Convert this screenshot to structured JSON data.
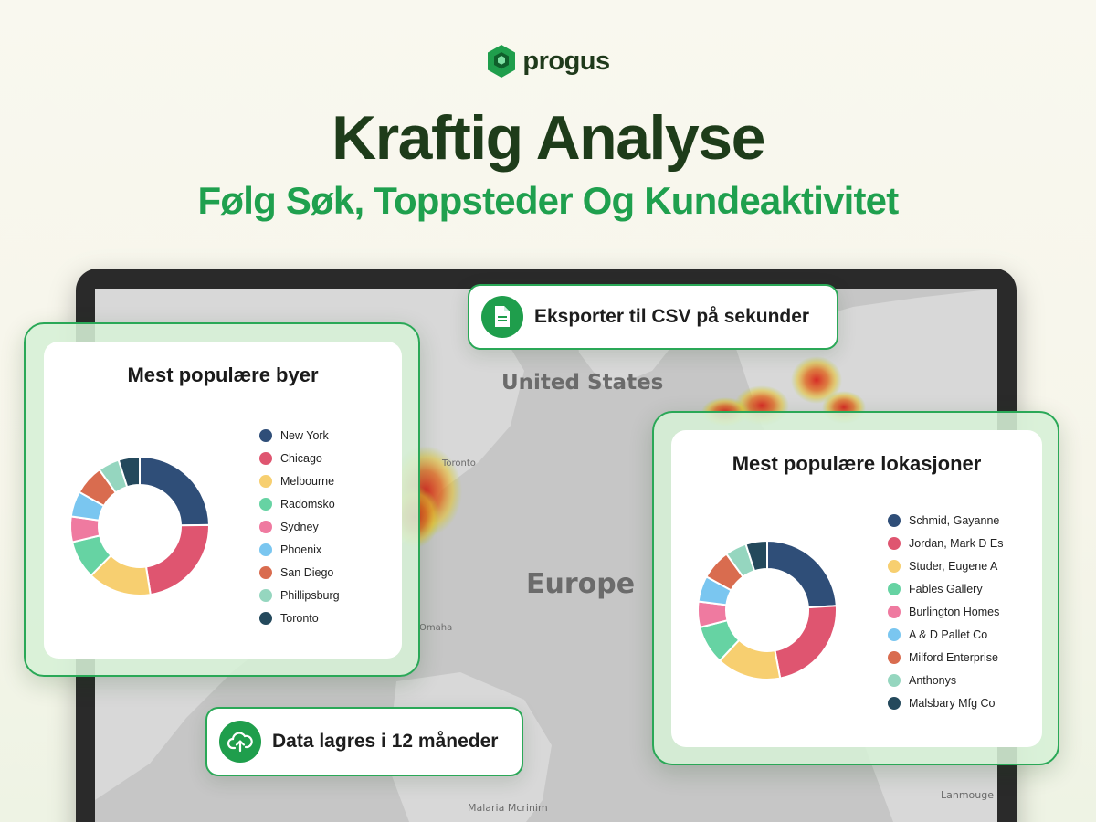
{
  "brand": {
    "name": "progus",
    "icon": "hexagon-logo-icon",
    "color": "#1f9e4c"
  },
  "headline": "Kraftig Analyse",
  "subheadline": "Følg Søk, Toppsteder Og Kundeaktivitet",
  "map": {
    "labels": {
      "north_america": "United States",
      "europe": "Europe",
      "omaha": "Omaha",
      "toronto": "Toronto",
      "malaria": "Malaria Mcrinim",
      "lanmouge": "Lanmouge"
    }
  },
  "pills": {
    "export": {
      "text": "Eksporter til CSV på sekunder",
      "icon": "document-icon"
    },
    "storage": {
      "text": "Data lagres i 12 måneder",
      "icon": "cloud-upload-icon"
    }
  },
  "colors": {
    "accent": "#2aa857",
    "slices": [
      "#2f4e78",
      "#df5570",
      "#f7cf70",
      "#66d3a3",
      "#ef7aa0",
      "#7ac6f0",
      "#d96c4f",
      "#95d6bf",
      "#24495c"
    ]
  },
  "chart_data": [
    {
      "type": "pie",
      "donut": true,
      "title": "Mest populære byer",
      "categories": [
        "New York",
        "Chicago",
        "Melbourne",
        "Radomsko",
        "Sydney",
        "Phoenix",
        "San Diego",
        "Phillipsburg",
        "Toronto"
      ],
      "values": [
        25,
        23,
        15,
        9,
        6,
        6,
        7,
        5,
        5
      ],
      "legend_position": "right"
    },
    {
      "type": "pie",
      "donut": true,
      "title": "Mest populære lokasjoner",
      "categories": [
        "Schmid, Gayanne",
        "Jordan, Mark D Es",
        "Studer, Eugene A",
        "Fables Gallery",
        "Burlington Homes",
        "A & D Pallet Co",
        "Milford Enterprise",
        "Anthonys",
        "Malsbary Mfg Co"
      ],
      "values": [
        24,
        23,
        15,
        9,
        6,
        6,
        7,
        5,
        5
      ],
      "legend_position": "right"
    }
  ]
}
